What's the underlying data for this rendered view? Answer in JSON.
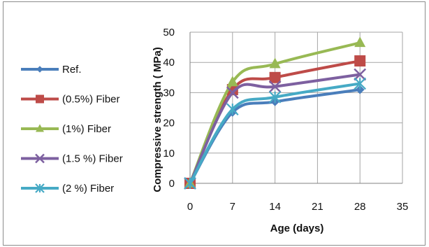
{
  "chart_data": {
    "type": "line",
    "xlabel": "Age (days)",
    "ylabel": "Compressive strength ( MPa)",
    "xlim": [
      0,
      35
    ],
    "ylim": [
      0,
      50
    ],
    "xticks": [
      "0",
      "7",
      "14",
      "21",
      "28",
      "35"
    ],
    "yticks": [
      "0",
      "10",
      "20",
      "30",
      "40",
      "50"
    ],
    "grid": "vertical and horizontal",
    "legend_position": "left",
    "x": [
      0,
      7,
      14,
      28
    ],
    "series": [
      {
        "name": "Ref.",
        "values": [
          0,
          23.5,
          27,
          31
        ],
        "color": "#4a7ebb",
        "marker": "diamond"
      },
      {
        "name": "(0.5%) Fiber",
        "values": [
          0,
          31,
          35,
          40.5
        ],
        "color": "#be4b48",
        "marker": "square"
      },
      {
        "name": "(1%) Fiber",
        "values": [
          0,
          33.5,
          39.5,
          46.5
        ],
        "color": "#98b954",
        "marker": "triangle"
      },
      {
        "name": "(1.5 %) Fiber",
        "values": [
          0,
          30,
          32,
          36
        ],
        "color": "#7d60a0",
        "marker": "x"
      },
      {
        "name": "(2 %) Fiber",
        "values": [
          0,
          24.5,
          28.5,
          33
        ],
        "color": "#46aac5",
        "marker": "star"
      }
    ]
  }
}
